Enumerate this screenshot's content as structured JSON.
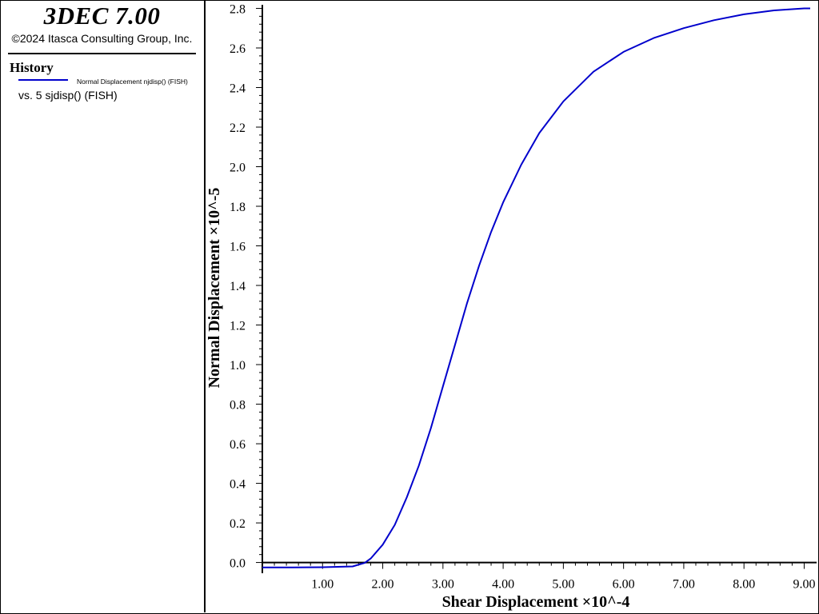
{
  "app": {
    "title": "3DEC 7.00",
    "copyright": "©2024 Itasca Consulting Group, Inc."
  },
  "legend": {
    "section_title": "History",
    "series_label": "Normal Displacement njdisp() (FISH)",
    "versus_label": "vs. 5 sjdisp() (FISH)",
    "series_color": "#0000cc"
  },
  "chart_data": {
    "type": "line",
    "xlabel": "Shear Displacement ×10^-4",
    "ylabel": "Normal Displacement ×10^-5",
    "xlim": [
      0.0,
      9.1
    ],
    "ylim": [
      -0.03,
      2.81
    ],
    "x_ticks": [
      1.0,
      2.0,
      3.0,
      4.0,
      5.0,
      6.0,
      7.0,
      8.0,
      9.0
    ],
    "x_tick_labels": [
      "1.00",
      "2.00",
      "3.00",
      "4.00",
      "5.00",
      "6.00",
      "7.00",
      "8.00",
      "9.00"
    ],
    "y_ticks": [
      0.0,
      0.2,
      0.4,
      0.6,
      0.8,
      1.0,
      1.2,
      1.4,
      1.6,
      1.8,
      2.0,
      2.2,
      2.4,
      2.6,
      2.8
    ],
    "y_tick_labels": [
      "0.0",
      "0.2",
      "0.4",
      "0.6",
      "0.8",
      "1.0",
      "1.2",
      "1.4",
      "1.6",
      "1.8",
      "2.0",
      "2.2",
      "2.4",
      "2.6",
      "2.8"
    ],
    "zero_line": true,
    "grid": false,
    "series": [
      {
        "name": "Normal Displacement njdisp() (FISH)",
        "color": "#0000cc",
        "x": [
          0.0,
          0.5,
          1.0,
          1.5,
          1.7,
          1.8,
          2.0,
          2.2,
          2.4,
          2.6,
          2.8,
          3.0,
          3.2,
          3.4,
          3.6,
          3.8,
          4.0,
          4.3,
          4.6,
          5.0,
          5.5,
          6.0,
          6.5,
          7.0,
          7.5,
          8.0,
          8.5,
          9.0,
          9.1
        ],
        "y": [
          -0.025,
          -0.025,
          -0.024,
          -0.02,
          -0.002,
          0.02,
          0.09,
          0.19,
          0.33,
          0.49,
          0.68,
          0.89,
          1.1,
          1.31,
          1.5,
          1.67,
          1.82,
          2.01,
          2.17,
          2.33,
          2.48,
          2.58,
          2.65,
          2.7,
          2.74,
          2.77,
          2.79,
          2.8,
          2.8
        ]
      }
    ]
  }
}
